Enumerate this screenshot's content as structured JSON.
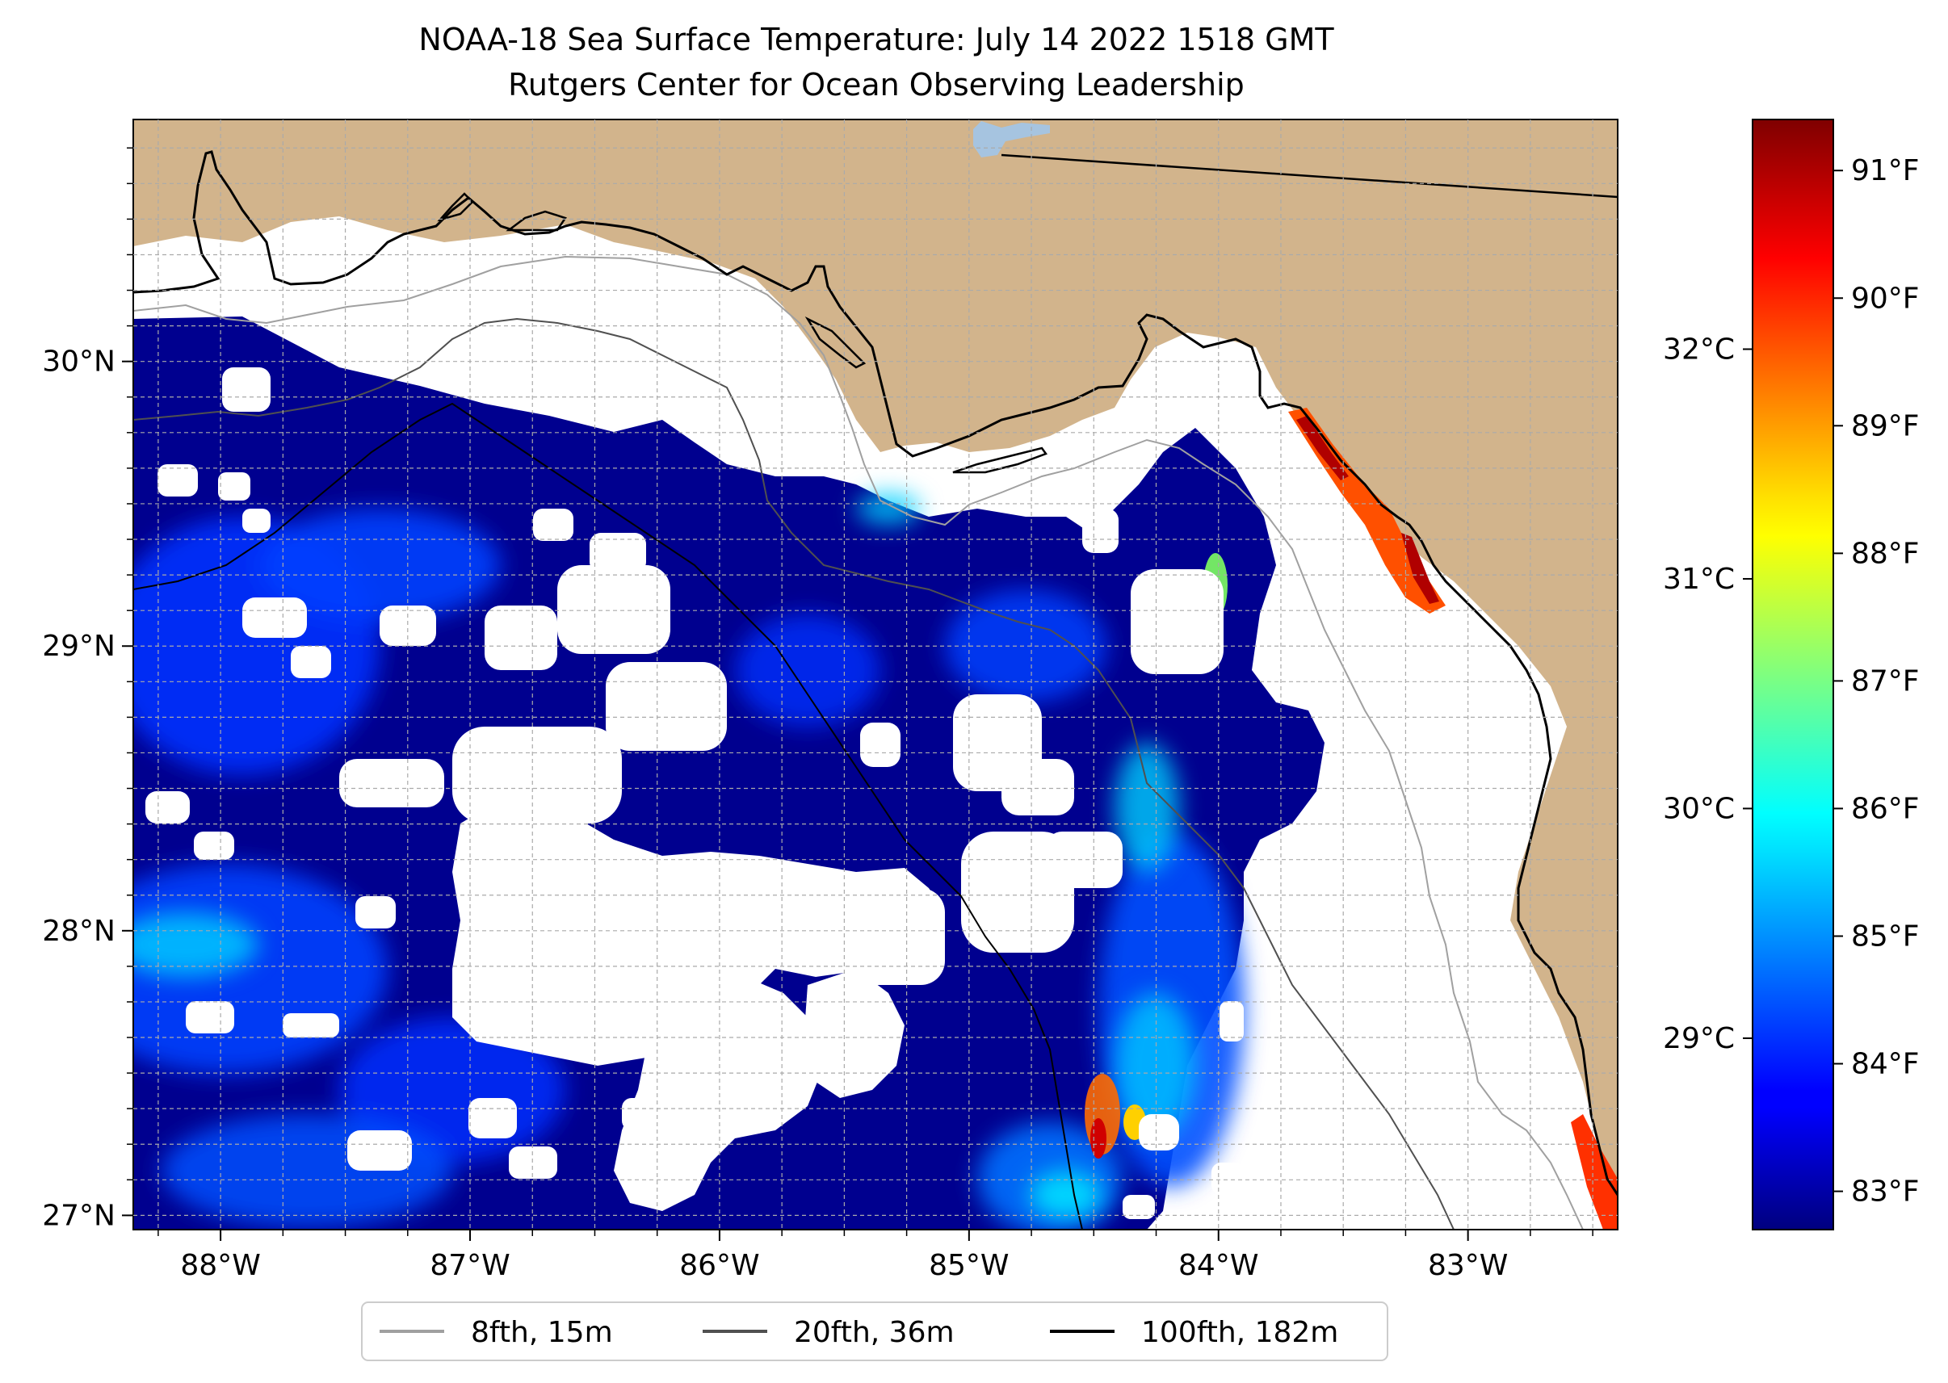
{
  "title": {
    "line1": "NOAA-18 Sea Surface Temperature: July 14 2022 1518 GMT",
    "line2": "Rutgers Center for Ocean Observing Leadership"
  },
  "map": {
    "lon_range": [
      -88.35,
      -82.4
    ],
    "lat_range": [
      26.95,
      30.85
    ],
    "lon_ticks": [
      {
        "value": -88,
        "label": "88°W"
      },
      {
        "value": -87,
        "label": "87°W"
      },
      {
        "value": -86,
        "label": "86°W"
      },
      {
        "value": -85,
        "label": "85°W"
      },
      {
        "value": -84,
        "label": "84°W"
      },
      {
        "value": -83,
        "label": "83°W"
      }
    ],
    "lat_ticks": [
      {
        "value": 27,
        "label": "27°N"
      },
      {
        "value": 28,
        "label": "28°N"
      },
      {
        "value": 29,
        "label": "29°N"
      },
      {
        "value": 30,
        "label": "30°N"
      }
    ],
    "colors": {
      "land": "#d2b48c",
      "ocean_missing": "#ffffff",
      "grid": "#aaaaaa",
      "lake": "#a6c4e0"
    }
  },
  "colorbar": {
    "colormap": "jet",
    "fahrenheit_ticks": [
      {
        "value": 83,
        "label": "83°F"
      },
      {
        "value": 84,
        "label": "84°F"
      },
      {
        "value": 85,
        "label": "85°F"
      },
      {
        "value": 86,
        "label": "86°F"
      },
      {
        "value": 87,
        "label": "87°F"
      },
      {
        "value": 88,
        "label": "88°F"
      },
      {
        "value": 89,
        "label": "89°F"
      },
      {
        "value": 90,
        "label": "90°F"
      },
      {
        "value": 91,
        "label": "91°F"
      }
    ],
    "celsius_ticks": [
      {
        "value": 29,
        "label": "29°C"
      },
      {
        "value": 30,
        "label": "30°C"
      },
      {
        "value": 31,
        "label": "31°C"
      },
      {
        "value": 32,
        "label": "32°C"
      }
    ],
    "range_f": [
      82.7,
      91.4
    ]
  },
  "legend": {
    "items": [
      {
        "label": "8fth, 15m",
        "color": "#a0a0a0"
      },
      {
        "label": "20fth, 36m",
        "color": "#505050"
      },
      {
        "label": "100fth, 182m",
        "color": "#000000"
      }
    ]
  }
}
